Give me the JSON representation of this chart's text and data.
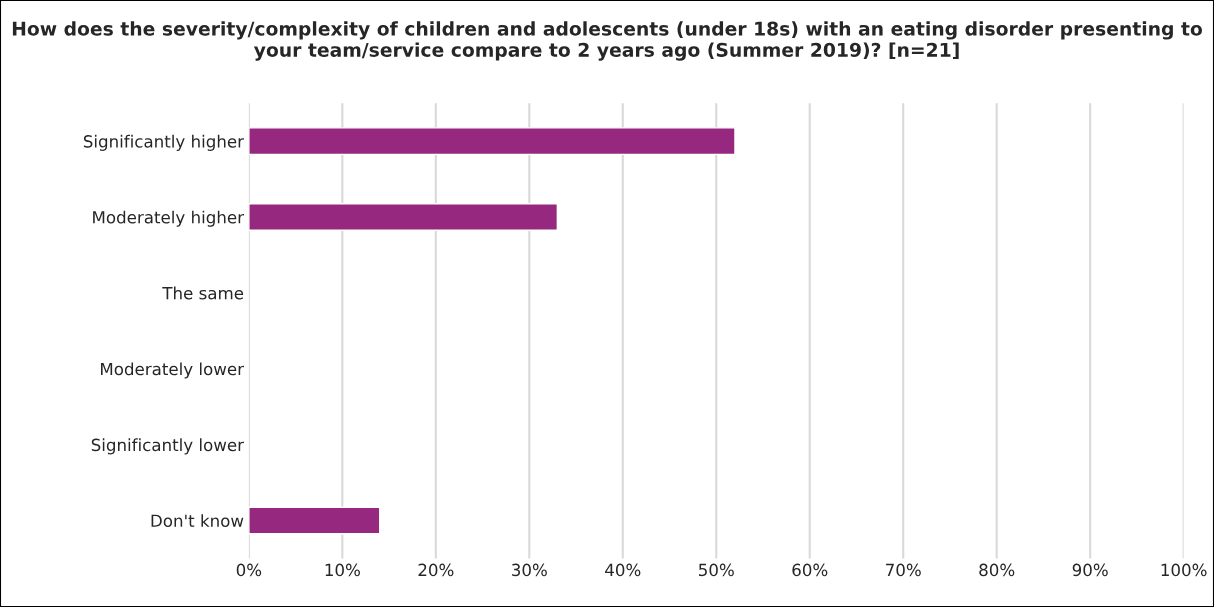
{
  "chart_data": {
    "type": "bar",
    "orientation": "horizontal",
    "title": "How does the severity/complexity of children and adolescents (under 18s) with an eating disorder presenting to your team/service compare to 2 years ago (Summer 2019)? [n=21]",
    "categories": [
      "Significantly higher",
      "Moderately higher",
      "The same",
      "Moderately lower",
      "Significantly lower",
      "Don't know"
    ],
    "values": [
      52,
      33,
      0,
      0,
      0,
      14
    ],
    "color": "#96287f",
    "xlim": [
      0,
      100
    ],
    "xticks": [
      {
        "value": 0,
        "label": "0%"
      },
      {
        "value": 10,
        "label": "10%"
      },
      {
        "value": 20,
        "label": "20%"
      },
      {
        "value": 30,
        "label": "30%"
      },
      {
        "value": 40,
        "label": "40%"
      },
      {
        "value": 50,
        "label": "50%"
      },
      {
        "value": 60,
        "label": "60%"
      },
      {
        "value": 70,
        "label": "70%"
      },
      {
        "value": 80,
        "label": "80%"
      },
      {
        "value": 90,
        "label": "90%"
      },
      {
        "value": 100,
        "label": "100%"
      }
    ],
    "grid": "x"
  }
}
